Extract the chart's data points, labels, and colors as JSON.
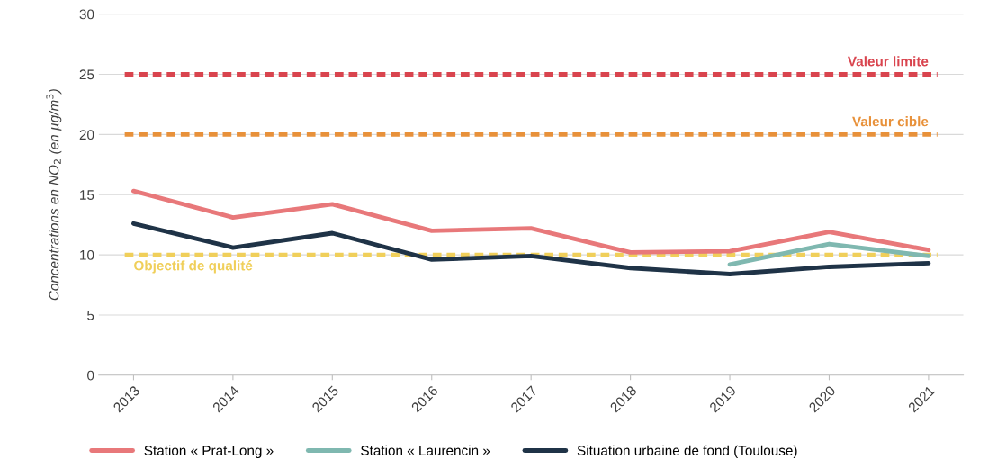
{
  "chart_data": {
    "type": "line",
    "ylabel": "Concentrations en NO$_{2}$ (en µg/m$^{3}$)",
    "categories": [
      "2013",
      "2014",
      "2015",
      "2016",
      "2017",
      "2018",
      "2019",
      "2020",
      "2021"
    ],
    "series": [
      {
        "name": "Station « Prat-Long »",
        "color": "#e8787a",
        "values": [
          15.3,
          13.1,
          14.2,
          12.0,
          12.2,
          10.2,
          10.3,
          11.9,
          10.4
        ]
      },
      {
        "name": "Station « Laurencin »",
        "color": "#7fb8b0",
        "values": [
          null,
          null,
          null,
          null,
          null,
          null,
          9.2,
          10.9,
          9.9
        ]
      },
      {
        "name": "Situation urbaine de fond (Toulouse)",
        "color": "#1f3347",
        "values": [
          12.6,
          10.6,
          11.8,
          9.6,
          9.9,
          8.9,
          8.4,
          9.0,
          9.3
        ]
      }
    ],
    "ylim": [
      0,
      30
    ],
    "yticks": [
      0,
      5,
      10,
      15,
      20,
      25,
      30
    ],
    "grid": "y",
    "legend": "bottom",
    "marker": "none",
    "line_style": "solid",
    "ref_lines": [
      {
        "axis": "y",
        "value": 25,
        "label": "Valeur limite",
        "color": "#d9444e",
        "line_style": "dashed"
      },
      {
        "axis": "y",
        "value": 20,
        "label": "Valeur cible",
        "color": "#e8913a",
        "line_style": "dashed"
      },
      {
        "axis": "y",
        "value": 10,
        "label": "Objectif de qualité",
        "color": "#f0cf5a",
        "line_style": "dashed"
      }
    ]
  }
}
